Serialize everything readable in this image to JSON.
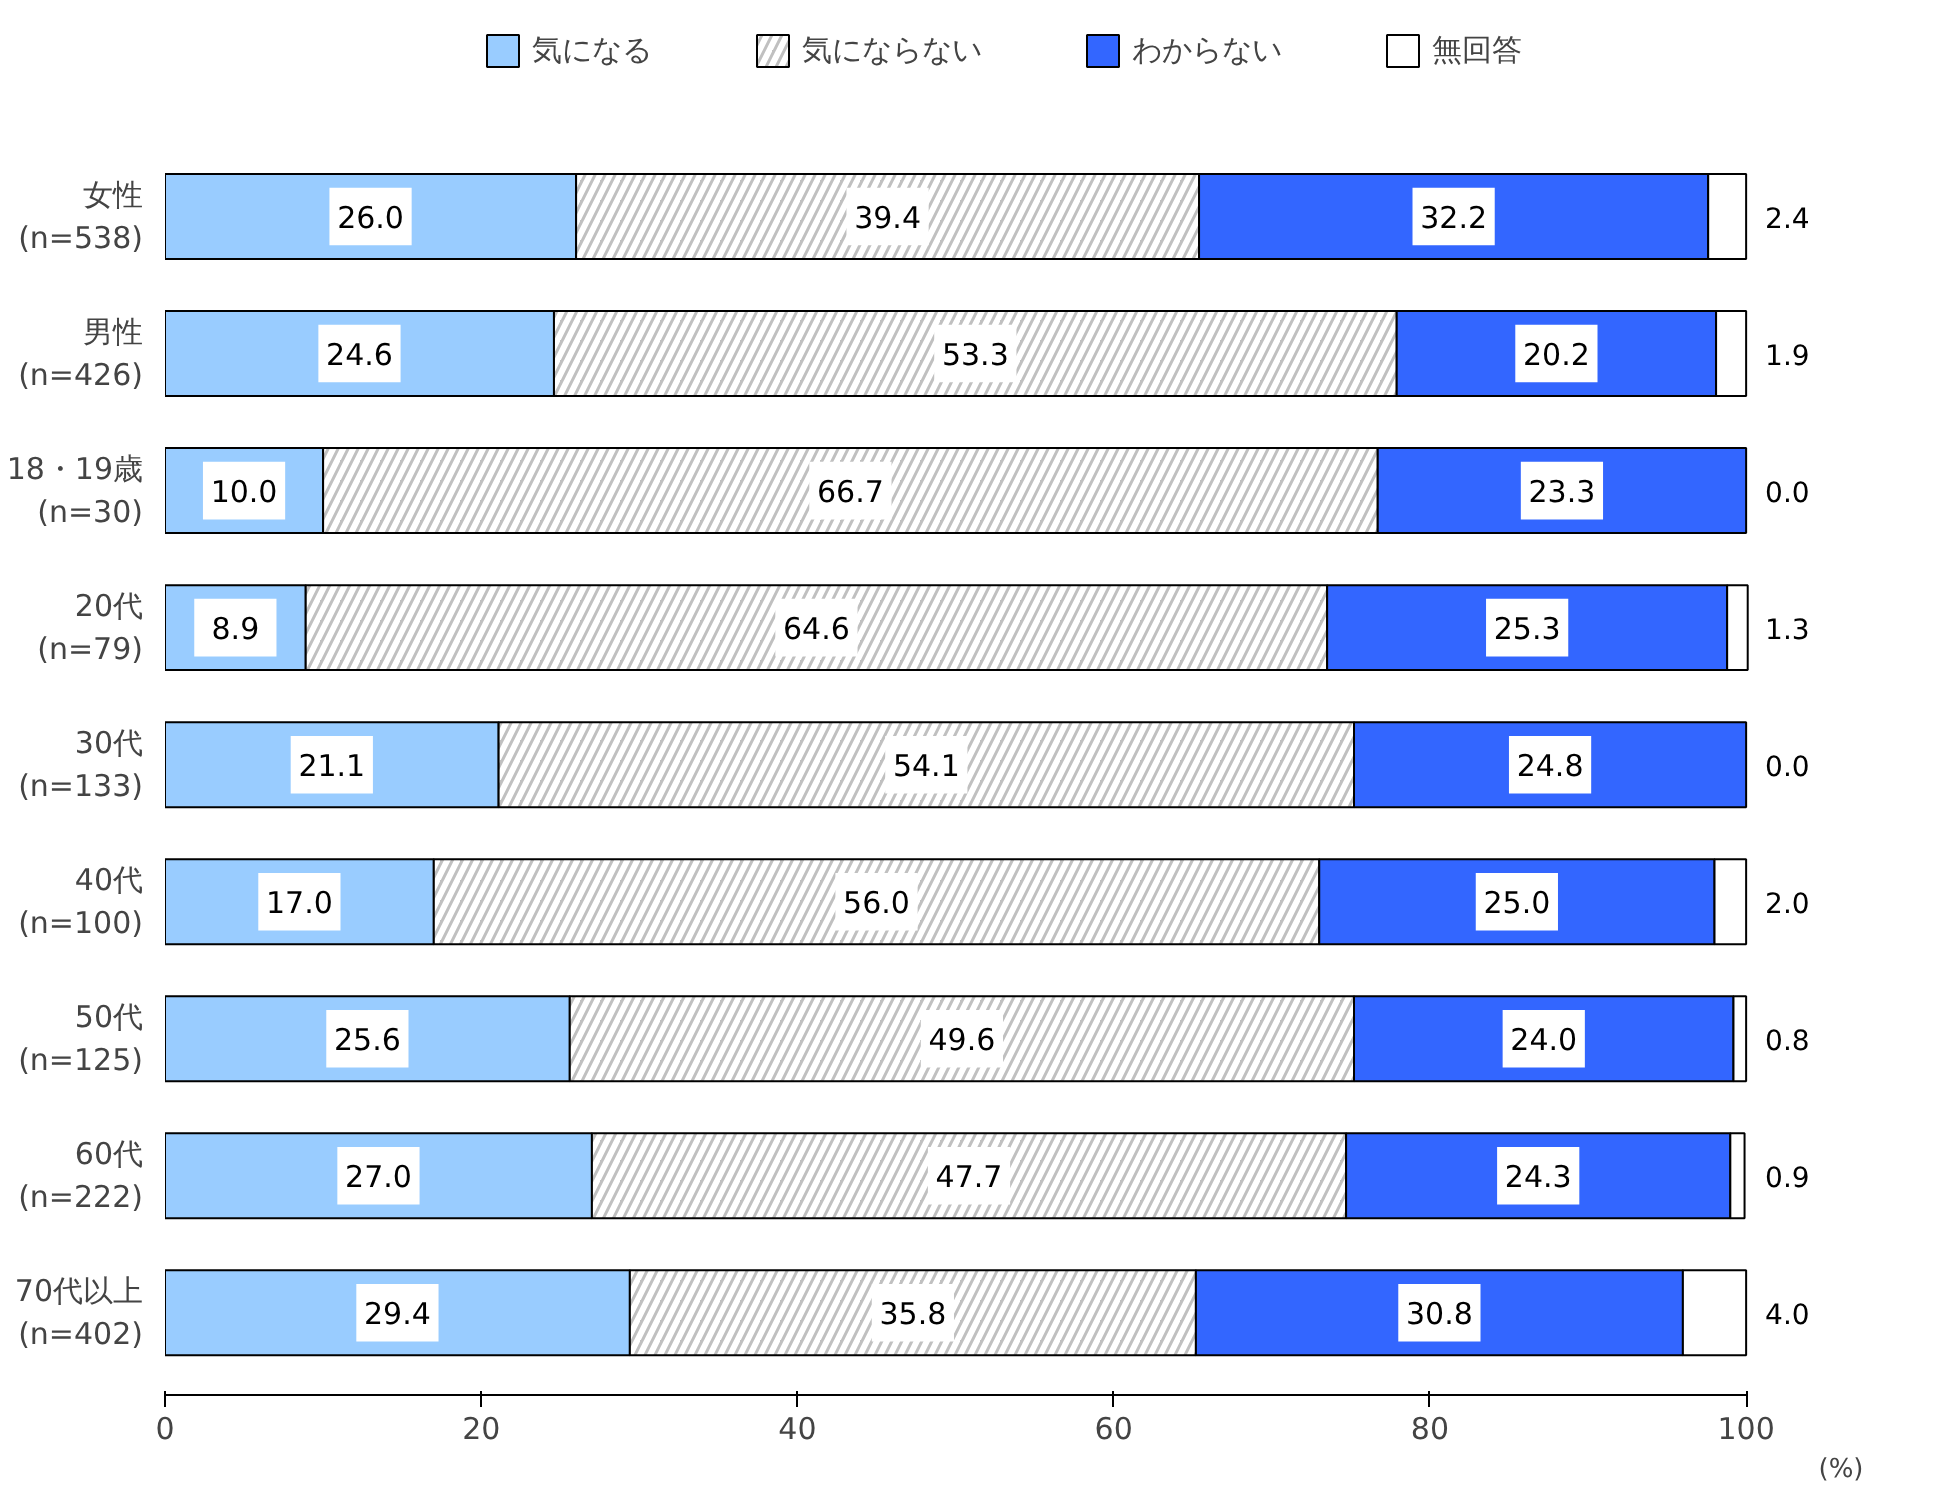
{
  "chart_data": {
    "type": "bar",
    "orientation": "horizontal",
    "stacked": true,
    "grid": false,
    "legend": "top",
    "xlabel": "(%)",
    "categories": [
      "女性\n(n=538)",
      "男性\n(n=426)",
      "18・19歳\n(n=30)",
      "20代\n(n=79)",
      "30代\n(n=133)",
      "40代\n(n=100)",
      "50代\n(n=125)",
      "60代\n(n=222)",
      "70代以上\n(n=402)"
    ],
    "xlim": [
      0,
      100
    ],
    "xticks": [
      0,
      20,
      40,
      60,
      80,
      100
    ],
    "series": [
      {
        "name": "気になる",
        "color": "#99ccff",
        "values": [
          26.0,
          24.6,
          10.0,
          8.9,
          21.1,
          17.0,
          25.6,
          27.0,
          29.4
        ],
        "value_labels": [
          "26.0",
          "24.6",
          "10.0",
          "8.9",
          "21.1",
          "17.0",
          "25.6",
          "27.0",
          "29.4"
        ]
      },
      {
        "name": "気にならない",
        "color": "#c0c0c0",
        "values": [
          39.4,
          53.3,
          66.7,
          64.6,
          54.1,
          56.0,
          49.6,
          47.7,
          35.8
        ],
        "value_labels": [
          "39.4",
          "53.3",
          "66.7",
          "64.6",
          "54.1",
          "56.0",
          "49.6",
          "47.7",
          "35.8"
        ]
      },
      {
        "name": "わからない",
        "color": "#3366ff",
        "values": [
          32.2,
          20.2,
          23.3,
          25.3,
          24.8,
          25.0,
          24.0,
          24.3,
          30.8
        ],
        "value_labels": [
          "32.2",
          "20.2",
          "23.3",
          "25.3",
          "24.8",
          "25.0",
          "24.0",
          "24.3",
          "30.8"
        ]
      },
      {
        "name": "無回答",
        "color": "#ffffff",
        "values": [
          2.4,
          1.9,
          0.0,
          1.3,
          0.0,
          2.0,
          0.8,
          0.9,
          4.0
        ],
        "value_labels": [
          "2.4",
          "1.9",
          "0.0",
          "1.3",
          "0.0",
          "2.0",
          "0.8",
          "0.9",
          "4.0"
        ]
      }
    ]
  }
}
